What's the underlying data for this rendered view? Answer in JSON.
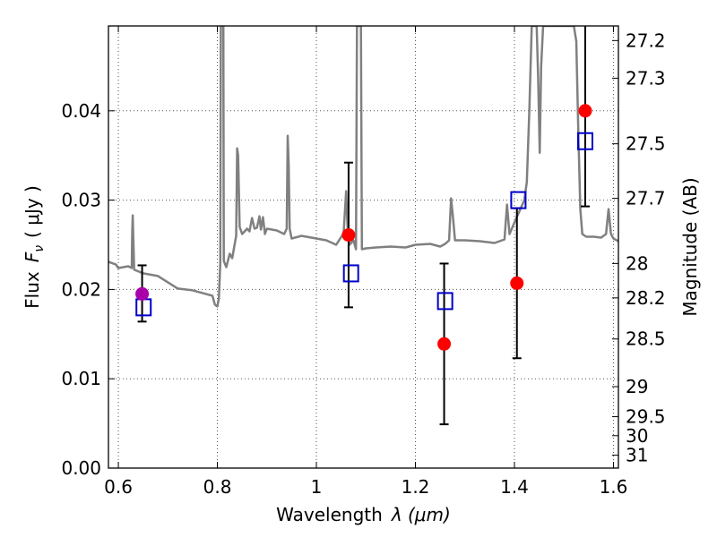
{
  "chart_data": {
    "type": "scatter",
    "xlabel": "Wavelength",
    "xlabel_symbol": "λ (μm)",
    "ylabel": "Flux",
    "ylabel_symbol": "F",
    "ylabel_subscript": "ν",
    "ylabel_unit": "( μJy )",
    "y2label": "Magnitude (AB)",
    "xlim": [
      0.58,
      1.61
    ],
    "ylim": [
      0.0,
      0.0495
    ],
    "grid": true,
    "grid_style": "dotted",
    "x_ticks": [
      0.6,
      0.8,
      1.0,
      1.2,
      1.4,
      1.6
    ],
    "x_tick_labels": [
      "0.6",
      "0.8",
      "1",
      "1.2",
      "1.4",
      "1.6"
    ],
    "y_ticks": [
      0.0,
      0.01,
      0.02,
      0.03,
      0.04
    ],
    "y_tick_labels": [
      "0.00",
      "0.01",
      "0.02",
      "0.03",
      "0.04"
    ],
    "mag_ticks": [
      27.2,
      27.3,
      27.5,
      27.7,
      28,
      28.2,
      28.5,
      29,
      29.5,
      30,
      31
    ],
    "mag_tick_labels": [
      "27.2",
      "27.3",
      "27.5",
      "27.7",
      "28",
      "28.2",
      "28.5",
      "29",
      "29.5",
      "30",
      "31"
    ],
    "colors": {
      "spectrum": "#808080",
      "observed": "#ff0000",
      "observed_first": "#aa00aa",
      "model": "#0000cc",
      "errorbar": "#000000",
      "grid": "#555555"
    },
    "spectrum": [
      [
        0.58,
        0.0231
      ],
      [
        0.595,
        0.0228
      ],
      [
        0.6,
        0.0224
      ],
      [
        0.62,
        0.0226
      ],
      [
        0.627,
        0.0224
      ],
      [
        0.628,
        0.0262
      ],
      [
        0.629,
        0.0283
      ],
      [
        0.63,
        0.0262
      ],
      [
        0.632,
        0.0222
      ],
      [
        0.65,
        0.0218
      ],
      [
        0.68,
        0.0215
      ],
      [
        0.7,
        0.0208
      ],
      [
        0.72,
        0.0201
      ],
      [
        0.75,
        0.0199
      ],
      [
        0.77,
        0.0196
      ],
      [
        0.79,
        0.0193
      ],
      [
        0.795,
        0.0183
      ],
      [
        0.8,
        0.0181
      ],
      [
        0.803,
        0.019
      ],
      [
        0.806,
        0.023
      ],
      [
        0.807,
        0.0495
      ],
      [
        0.812,
        0.0495
      ],
      [
        0.813,
        0.0232
      ],
      [
        0.818,
        0.0225
      ],
      [
        0.825,
        0.024
      ],
      [
        0.83,
        0.0235
      ],
      [
        0.838,
        0.026
      ],
      [
        0.84,
        0.0358
      ],
      [
        0.842,
        0.035
      ],
      [
        0.845,
        0.027
      ],
      [
        0.85,
        0.0262
      ],
      [
        0.86,
        0.0268
      ],
      [
        0.865,
        0.0265
      ],
      [
        0.87,
        0.028
      ],
      [
        0.875,
        0.0268
      ],
      [
        0.88,
        0.0269
      ],
      [
        0.885,
        0.0282
      ],
      [
        0.888,
        0.0267
      ],
      [
        0.892,
        0.0281
      ],
      [
        0.896,
        0.0262
      ],
      [
        0.9,
        0.0268
      ],
      [
        0.92,
        0.0266
      ],
      [
        0.935,
        0.0262
      ],
      [
        0.94,
        0.0268
      ],
      [
        0.942,
        0.0372
      ],
      [
        0.944,
        0.034
      ],
      [
        0.946,
        0.0268
      ],
      [
        0.95,
        0.0257
      ],
      [
        0.97,
        0.026
      ],
      [
        1.0,
        0.0257
      ],
      [
        1.02,
        0.0255
      ],
      [
        1.04,
        0.025
      ],
      [
        1.055,
        0.0263
      ],
      [
        1.06,
        0.031
      ],
      [
        1.063,
        0.027
      ],
      [
        1.067,
        0.025
      ],
      [
        1.075,
        0.0255
      ],
      [
        1.08,
        0.0245
      ],
      [
        1.082,
        0.0495
      ],
      [
        1.09,
        0.0495
      ],
      [
        1.092,
        0.0245
      ],
      [
        1.1,
        0.0246
      ],
      [
        1.12,
        0.0247
      ],
      [
        1.15,
        0.0248
      ],
      [
        1.18,
        0.0247
      ],
      [
        1.2,
        0.025
      ],
      [
        1.23,
        0.0251
      ],
      [
        1.25,
        0.0248
      ],
      [
        1.26,
        0.0251
      ],
      [
        1.268,
        0.0255
      ],
      [
        1.272,
        0.0302
      ],
      [
        1.276,
        0.028
      ],
      [
        1.28,
        0.0255
      ],
      [
        1.3,
        0.0255
      ],
      [
        1.33,
        0.0254
      ],
      [
        1.36,
        0.0252
      ],
      [
        1.38,
        0.0256
      ],
      [
        1.385,
        0.0295
      ],
      [
        1.39,
        0.0262
      ],
      [
        1.4,
        0.0275
      ],
      [
        1.42,
        0.03
      ],
      [
        1.425,
        0.032
      ],
      [
        1.43,
        0.04
      ],
      [
        1.435,
        0.0495
      ],
      [
        1.445,
        0.0495
      ],
      [
        1.448,
        0.0435
      ],
      [
        1.451,
        0.0353
      ],
      [
        1.454,
        0.045
      ],
      [
        1.458,
        0.0495
      ],
      [
        1.52,
        0.0495
      ],
      [
        1.525,
        0.0478
      ],
      [
        1.529,
        0.0375
      ],
      [
        1.533,
        0.029
      ],
      [
        1.537,
        0.0262
      ],
      [
        1.545,
        0.0259
      ],
      [
        1.56,
        0.0259
      ],
      [
        1.575,
        0.0258
      ],
      [
        1.585,
        0.0262
      ],
      [
        1.59,
        0.029
      ],
      [
        1.595,
        0.0262
      ],
      [
        1.6,
        0.0257
      ],
      [
        1.61,
        0.0254
      ]
    ],
    "observed": [
      {
        "x": 0.648,
        "y": 0.0195,
        "err_lo": 0.0031,
        "err_hi": 0.0032
      },
      {
        "x": 1.065,
        "y": 0.0261,
        "err_lo": 0.0081,
        "err_hi": 0.0081
      },
      {
        "x": 1.258,
        "y": 0.0139,
        "err_lo": 0.009,
        "err_hi": 0.009
      },
      {
        "x": 1.405,
        "y": 0.0207,
        "err_lo": 0.0084,
        "err_hi": 0.0084
      },
      {
        "x": 1.543,
        "y": 0.04,
        "err_lo": 0.0107,
        "err_hi": 0.0107
      }
    ],
    "model": [
      {
        "x": 0.651,
        "y": 0.018
      },
      {
        "x": 1.07,
        "y": 0.0218
      },
      {
        "x": 1.26,
        "y": 0.0187
      },
      {
        "x": 1.408,
        "y": 0.03
      },
      {
        "x": 1.543,
        "y": 0.0366
      }
    ]
  }
}
